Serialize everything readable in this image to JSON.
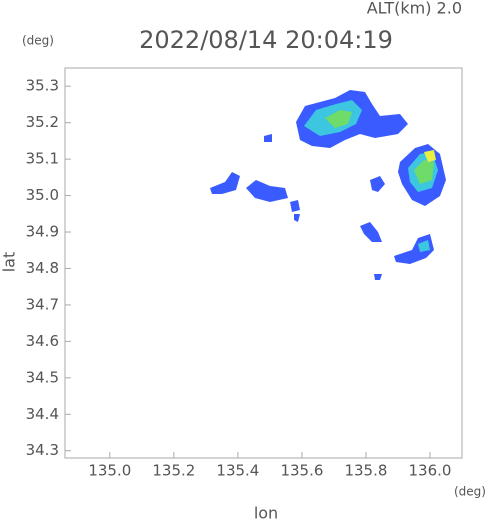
{
  "chart_data": {
    "type": "map",
    "title": "2022/08/14 20:04:19",
    "subtitle": "ALT(km) 2.0",
    "x_label": "lon",
    "y_label": "lat",
    "x_unit": "(deg)",
    "y_unit": "(deg)",
    "xlim": [
      134.86,
      136.1
    ],
    "ylim": [
      34.28,
      35.35
    ],
    "xticks": [
      {
        "value": 135,
        "label": "135.0"
      },
      135.2,
      135.4,
      135.6,
      135.8,
      {
        "value": 136,
        "label": "136.0"
      }
    ],
    "yticks": [
      35.3,
      35.2,
      35.1,
      {
        "value": 35,
        "label": "35.0"
      },
      34.9,
      34.8,
      34.7,
      34.6,
      34.5,
      34.4,
      34.3
    ]
  }
}
